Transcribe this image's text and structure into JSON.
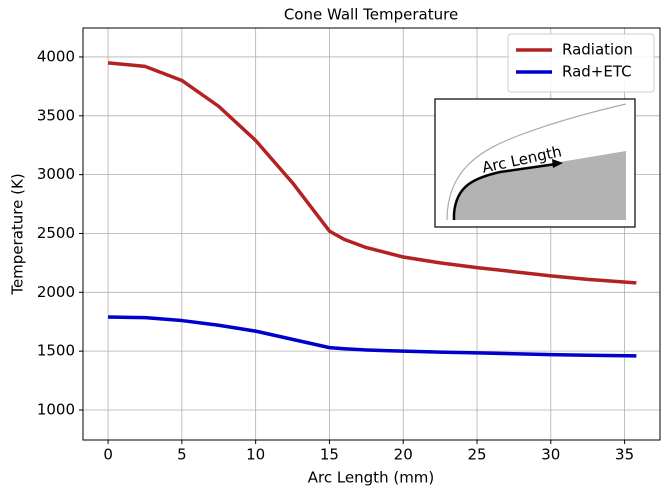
{
  "chart_data": {
    "type": "line",
    "title": "Cone Wall Temperature",
    "x_label": "Arc Length (mm)",
    "y_label": "Temperature (K)",
    "x": [
      0,
      2.5,
      5,
      7.5,
      10,
      12.5,
      15,
      16,
      17.5,
      20,
      22.5,
      25,
      27.5,
      30,
      32.5,
      35.8
    ],
    "series": [
      {
        "name": "Radiation",
        "color": "#b22222",
        "values": [
          3950,
          3920,
          3800,
          3580,
          3290,
          2930,
          2520,
          2450,
          2380,
          2300,
          2250,
          2210,
          2175,
          2140,
          2110,
          2080
        ]
      },
      {
        "name": "Rad+ETC",
        "color": "#0000cc",
        "values": [
          1790,
          1785,
          1760,
          1720,
          1670,
          1600,
          1530,
          1520,
          1510,
          1500,
          1492,
          1485,
          1478,
          1470,
          1465,
          1460
        ]
      }
    ],
    "xlim": [
      -1.7,
      37.4
    ],
    "ylim": [
      745,
      4246
    ],
    "xticks": [
      0,
      5,
      10,
      15,
      20,
      25,
      30,
      35
    ],
    "yticks": [
      1000,
      1500,
      2000,
      2500,
      3000,
      3500,
      4000
    ],
    "grid": true,
    "legend": "upper right",
    "annotation": "Arc Length"
  }
}
